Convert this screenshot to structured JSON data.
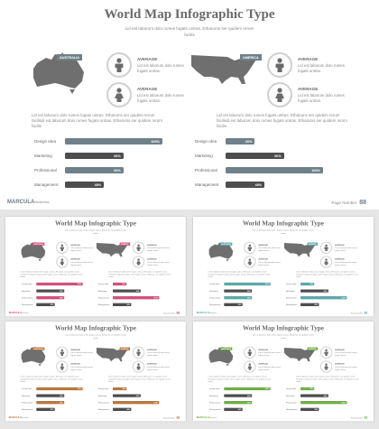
{
  "title": "World Map Infographic Type",
  "subtitle": "Lid est laborum dolo rumes fugats untras. Etharums ser quidem rerum facilis",
  "panels": [
    {
      "region": "AUSTRALIA",
      "stats": [
        {
          "heading": "AVERAGE",
          "text": "Lid est laborum dolo rumes fugats untras."
        },
        {
          "heading": "AVERAGE",
          "text": "Lid est laborum dolo rumes fugats untras."
        }
      ],
      "paragraph": "Lid est laborum dolo rumes fugats untras. Etharums ser quidem rerum facilisdi est laborum dolo rumes fugats untras. Etharums ser quidem rerum facilis",
      "bars": [
        {
          "label": "Design Idea",
          "value": 100,
          "value_label": "100%",
          "highlight": true
        },
        {
          "label": "Marketing",
          "value": 60,
          "value_label": "60%",
          "highlight": false
        },
        {
          "label": "Professional",
          "value": 60,
          "value_label": "60%",
          "highlight": true
        },
        {
          "label": "Management",
          "value": 40,
          "value_label": "40%",
          "highlight": false
        }
      ]
    },
    {
      "region": "AMERICA",
      "stats": [
        {
          "heading": "AVERAGE",
          "text": "Lid est laborum dolo rumes fugats untras."
        },
        {
          "heading": "AVERAGE",
          "text": "Lid est laborum dolo rumes fugats untras."
        }
      ],
      "paragraph": "Lid est laborum dolo rumes fugats untras. Etharums ser quidem rerum facilisdi est laborum dolo rumes fugats untras. Etharums ser quidem rerum facilis",
      "bars": [
        {
          "label": "Design Idea",
          "value": 30,
          "value_label": "30%",
          "highlight": true
        },
        {
          "label": "Marketing",
          "value": 60,
          "value_label": "60%",
          "highlight": false
        },
        {
          "label": "Professional",
          "value": 100,
          "value_label": "100%",
          "highlight": true
        },
        {
          "label": "Management",
          "value": 40,
          "value_label": "40%",
          "highlight": false
        }
      ]
    }
  ],
  "footer": {
    "brand": "MARCULA",
    "brand_suffix": "Business",
    "page_label": "Page Number",
    "page_number": "88"
  },
  "accent_colors": [
    "#6e8088",
    "#d2507c",
    "#5ba9a8",
    "#b9773f",
    "#6fae48"
  ]
}
